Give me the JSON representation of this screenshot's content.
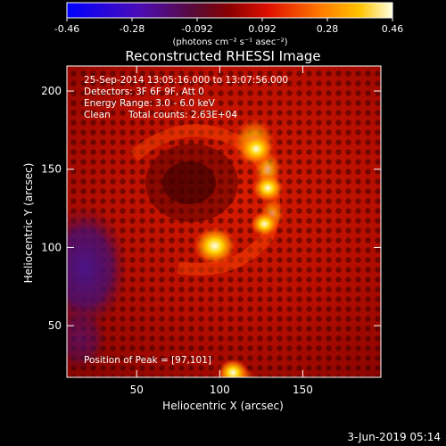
{
  "colorbar": {
    "tick_labels": [
      "-0.46",
      "-0.28",
      "-0.092",
      "0.092",
      "0.28",
      "0.46"
    ],
    "range": [
      -0.46,
      0.46
    ],
    "units_label": "(photons cm⁻² s⁻¹ asec⁻²)"
  },
  "chart_data": {
    "type": "heatmap",
    "title": "Reconstructed RHESSI Image",
    "xlabel": "Heliocentric X (arcsec)",
    "ylabel": "Heliocentric Y (arcsec)",
    "xlim": [
      8,
      197
    ],
    "ylim": [
      17,
      216
    ],
    "xticks": [
      "50",
      "100",
      "150"
    ],
    "yticks": [
      "50",
      "100",
      "150",
      "200"
    ],
    "xtick_values": [
      50,
      100,
      150
    ],
    "ytick_values": [
      50,
      100,
      150,
      200
    ],
    "annotations": {
      "time_range": "25-Sep-2014 13:05:16.000 to 13:07:56.000",
      "detectors": "Detectors: 3F 6F 9F, Att 0",
      "energy": "Energy Range: 3.0 - 6.0 keV",
      "clean_label": "Clean",
      "total_counts": "Total counts: 2.63E+04",
      "peak": "Position of Peak = [97,101]"
    },
    "sources": [
      {
        "x": 97,
        "y": 101,
        "intensity": 0.46
      },
      {
        "x": 122,
        "y": 163,
        "intensity": 0.34
      },
      {
        "x": 129,
        "y": 138,
        "intensity": 0.3
      },
      {
        "x": 127,
        "y": 115,
        "intensity": 0.25
      },
      {
        "x": 108,
        "y": 20,
        "intensity": 0.28
      }
    ]
  },
  "footer": {
    "date": "3-Jun-2019 05:14"
  }
}
